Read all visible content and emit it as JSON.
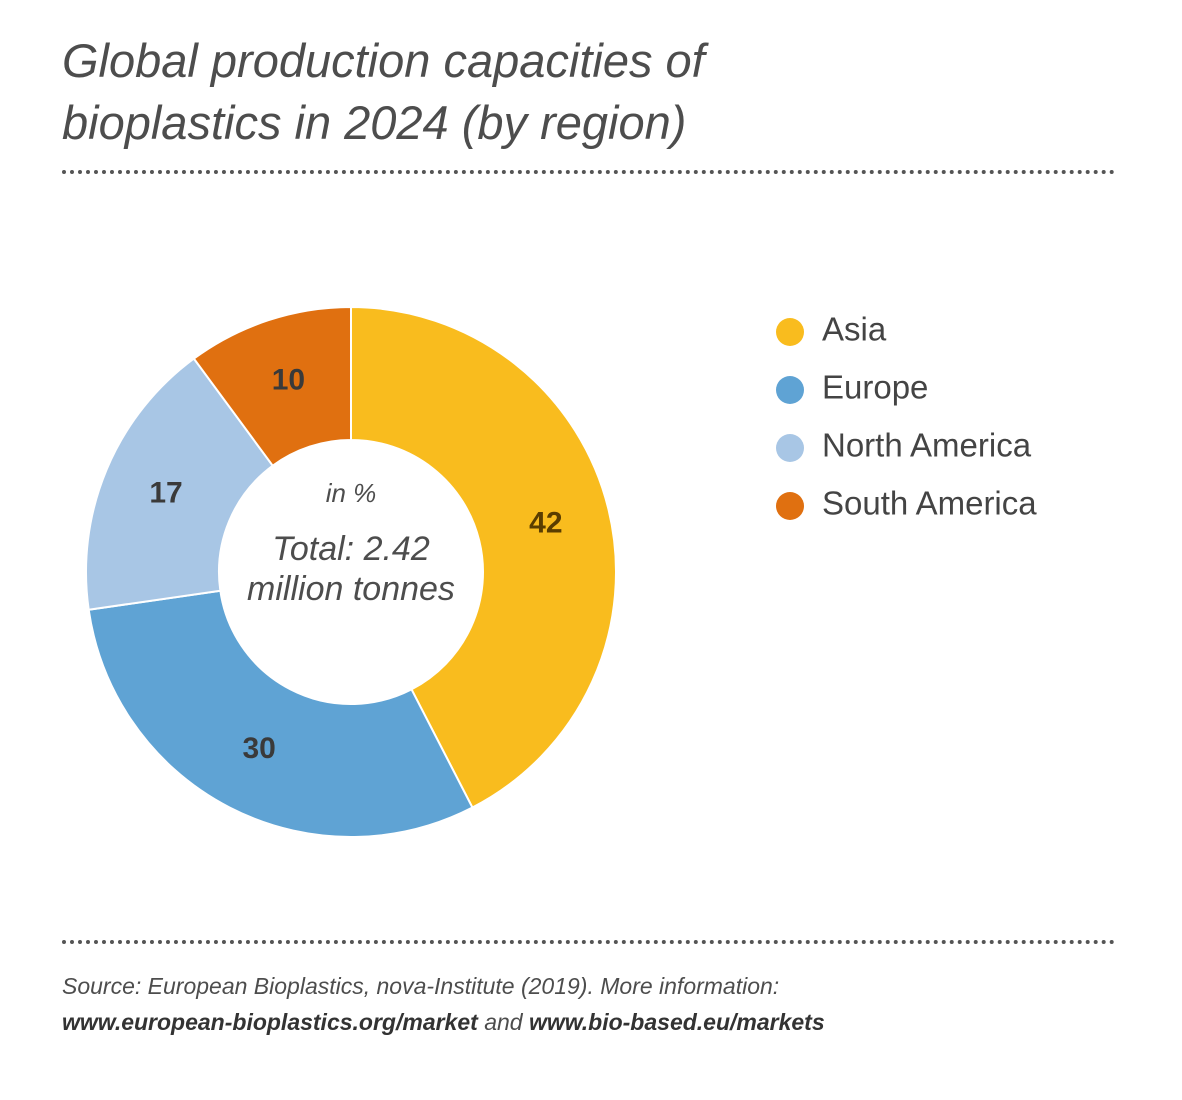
{
  "chart_data": {
    "type": "donut",
    "title": "Global production capacities of bioplastics in 2024 (by region)",
    "unit_label": "in %",
    "center_label": "Total: 2.42 million tonnes",
    "categories": [
      "Asia",
      "Europe",
      "North America",
      "South America"
    ],
    "values": [
      42,
      30,
      17,
      10
    ],
    "colors": [
      "#f9bc1e",
      "#5fa3d4",
      "#a8c6e5",
      "#e07010"
    ],
    "label_colors": [
      "#5a3d00",
      "#3a3a3a",
      "#3a3a3a",
      "#3a3a3a"
    ],
    "legend": "right"
  },
  "source": {
    "text": "Source: European Bioplastics, nova-Institute (2019). More information:",
    "link_1": "www.european-bioplastics.org/market",
    "connector": "and",
    "link_2": "www.bio-based.eu/markets"
  }
}
